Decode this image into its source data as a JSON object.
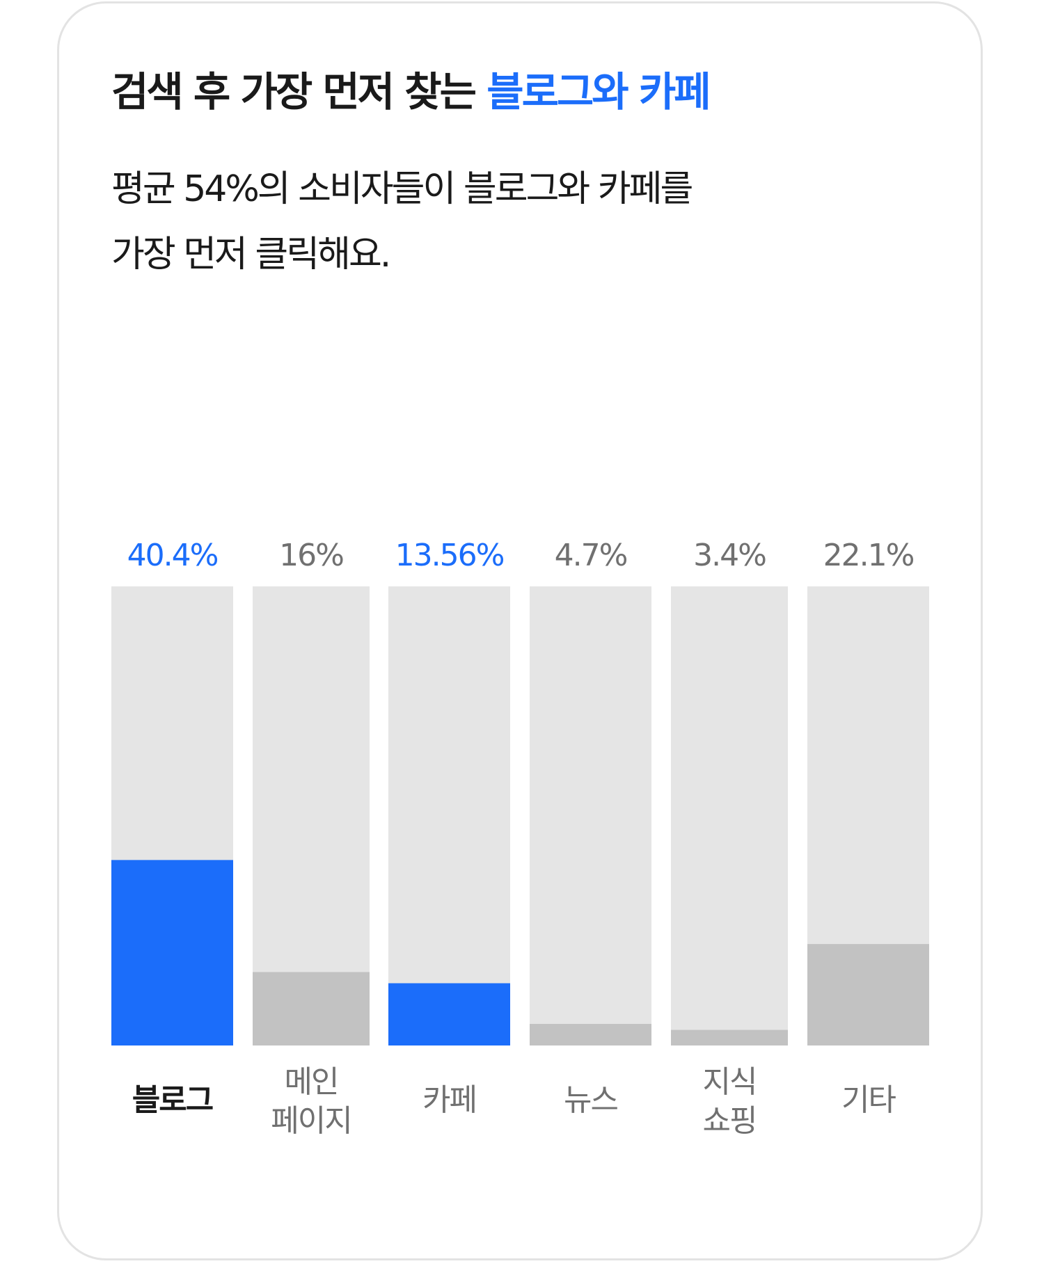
{
  "title": {
    "prefix": "검색 후 가장 먼저 찾는 ",
    "highlight": "블로그와 카페"
  },
  "description": {
    "line1": "평균 54%의 소비자들이 블로그와 카페를",
    "line2": "가장 먼저 클릭해요."
  },
  "colors": {
    "highlight": "#1b6dfa",
    "neutral_fill": "#c2c2c2",
    "track": "#e5e5e5",
    "neutral_text": "#707070",
    "emphasis_text": "#1a1a1a"
  },
  "chart_data": {
    "type": "bar",
    "title": "검색 후 가장 먼저 찾는 블로그와 카페",
    "xlabel": "",
    "ylabel": "",
    "ylim": [
      0,
      100
    ],
    "grid": false,
    "legend": "none",
    "categories": [
      [
        "블로그"
      ],
      [
        "메인",
        "페이지"
      ],
      [
        "카페"
      ],
      [
        "뉴스"
      ],
      [
        "지식",
        "쇼핑"
      ],
      [
        "기타"
      ]
    ],
    "values": [
      40.4,
      16,
      13.56,
      4.7,
      3.4,
      22.1
    ],
    "value_labels": [
      "40.4%",
      "16%",
      "13.56%",
      "4.7%",
      "3.4%",
      "22.1%"
    ],
    "highlighted": [
      true,
      false,
      true,
      false,
      false,
      false
    ],
    "bold_category": [
      true,
      false,
      false,
      false,
      false,
      false
    ]
  }
}
